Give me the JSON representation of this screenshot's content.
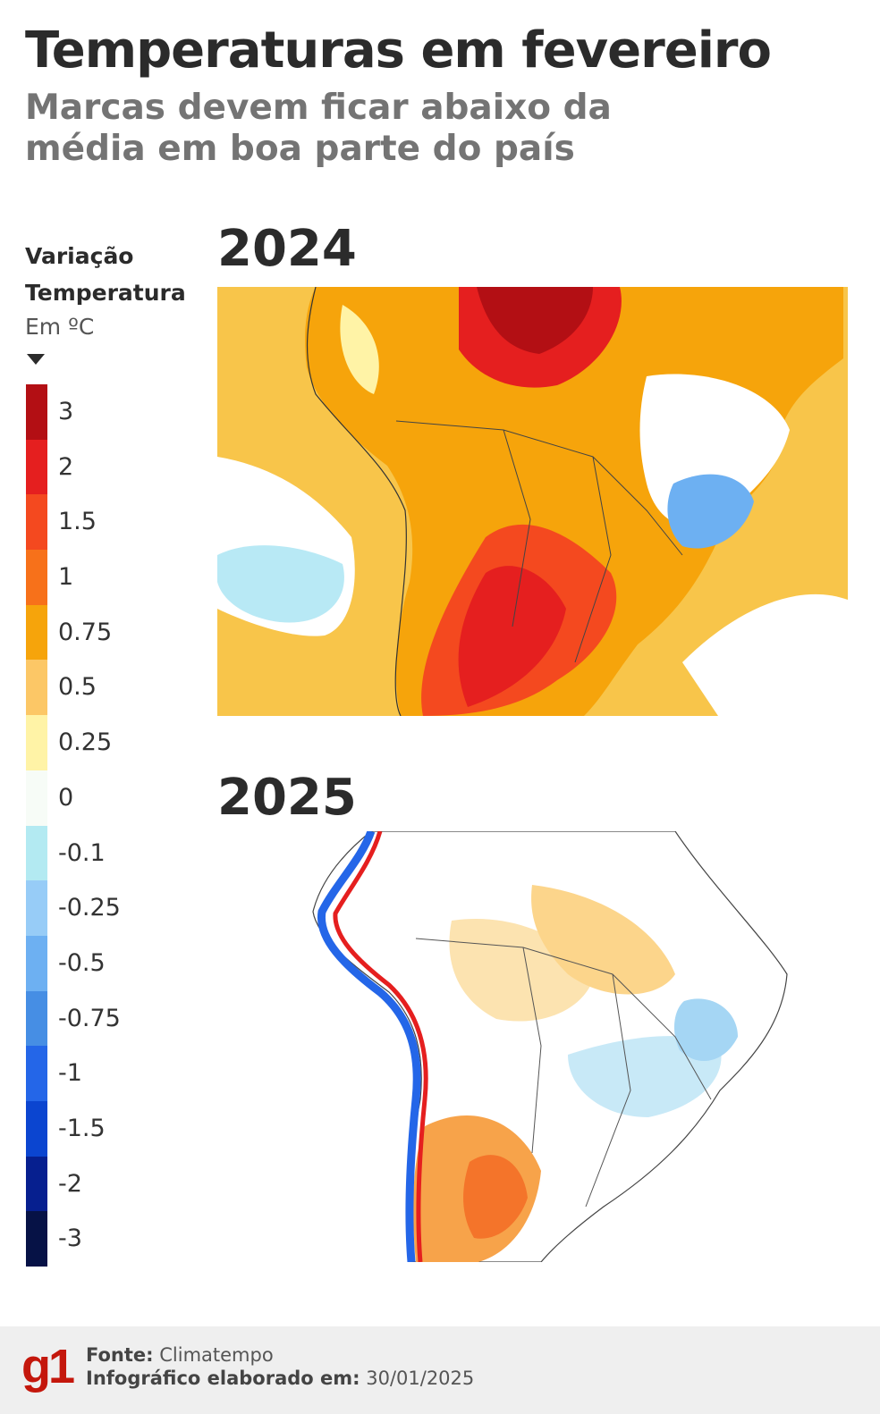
{
  "header": {
    "title": "Temperaturas em fevereiro",
    "subtitle": "Marcas devem ficar abaixo da média em boa parte do país"
  },
  "legend": {
    "title_line1": "Variação",
    "title_line2": "Temperatura",
    "unit": "Em ºC",
    "steps": [
      {
        "label": "3",
        "color": "#b30f14"
      },
      {
        "label": "2",
        "color": "#e51f1f"
      },
      {
        "label": "1.5",
        "color": "#f4491f"
      },
      {
        "label": "1",
        "color": "#f7711a"
      },
      {
        "label": "0.75",
        "color": "#f6a40b"
      },
      {
        "label": "0.5",
        "color": "#fcc766"
      },
      {
        "label": "0.25",
        "color": "#fff3a6"
      },
      {
        "label": "0",
        "color": "#f7fcf7"
      },
      {
        "label": "-0.1",
        "color": "#b3eaf2"
      },
      {
        "label": "-0.25",
        "color": "#97ccf7"
      },
      {
        "label": "-0.5",
        "color": "#6db0f2"
      },
      {
        "label": "-0.75",
        "color": "#468ee4"
      },
      {
        "label": "-1",
        "color": "#2466e8"
      },
      {
        "label": "-1.5",
        "color": "#0b45d0"
      },
      {
        "label": "-2",
        "color": "#061f8f"
      },
      {
        "label": "-3",
        "color": "#061246"
      }
    ]
  },
  "maps": {
    "first": {
      "year": "2024"
    },
    "second": {
      "year": "2025"
    }
  },
  "footer": {
    "logo": "g1",
    "source_label": "Fonte:",
    "source_value": "Climatempo",
    "date_label": "Infográfico elaborado em:",
    "date_value": "30/01/2025"
  }
}
